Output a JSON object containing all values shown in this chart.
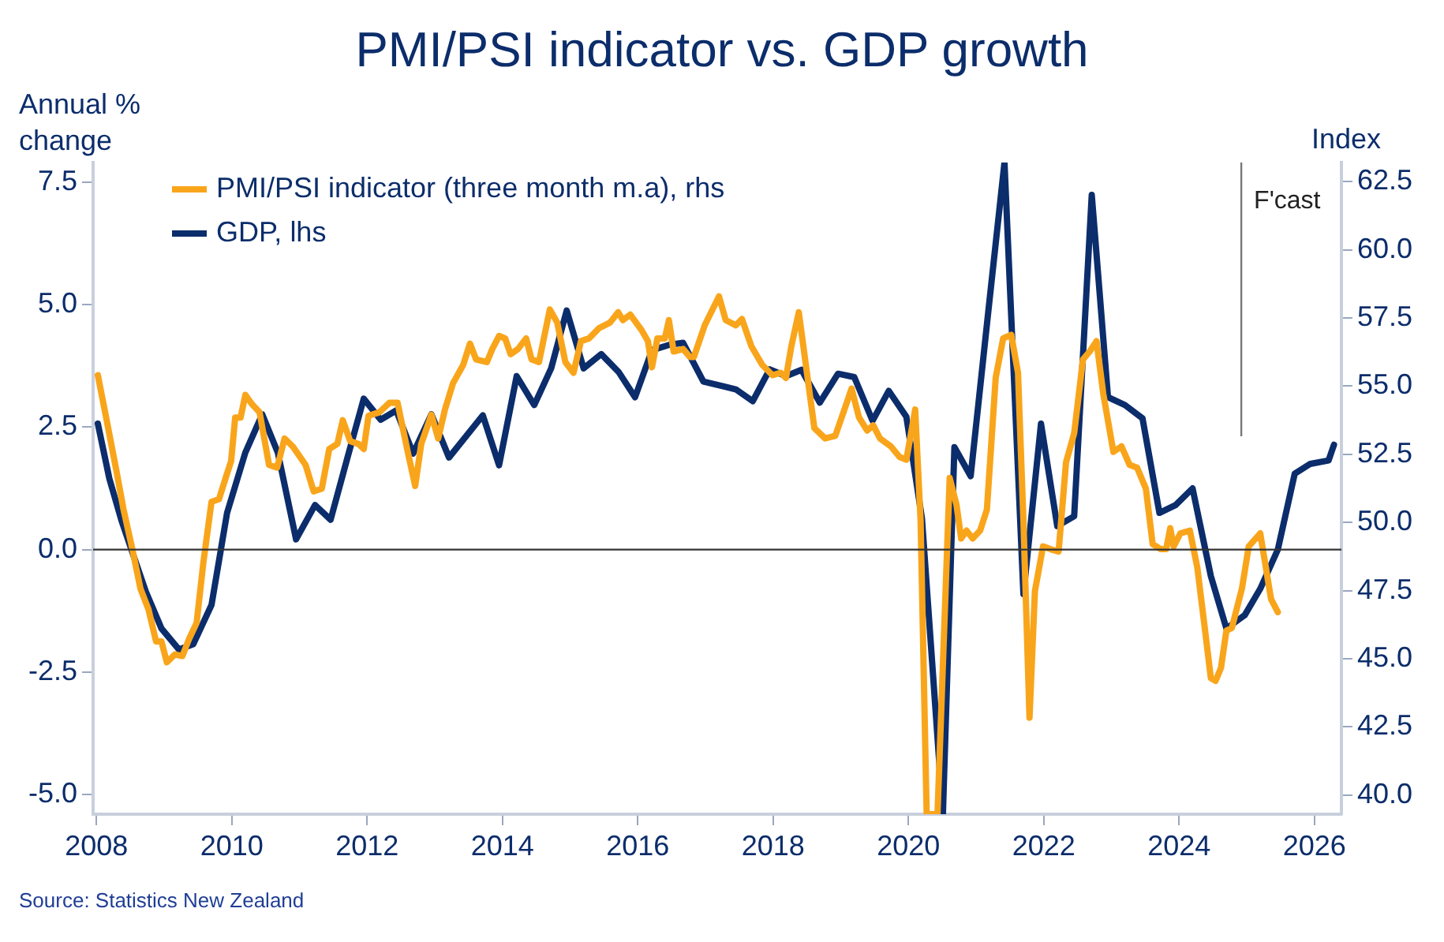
{
  "chart_data": {
    "type": "line",
    "title": "PMI/PSI indicator vs. GDP growth",
    "ylabel": "Annual % change",
    "y2label": "Index",
    "annotations": [
      "Source: Statistics New Zealand"
    ],
    "xlim": [
      2007.95,
      2026.4
    ],
    "xticks": [
      2008,
      2010,
      2012,
      2014,
      2016,
      2018,
      2020,
      2022,
      2024,
      2026
    ],
    "ylim": [
      -5.4,
      7.9
    ],
    "yticks": [
      {
        "value": -5,
        "label": "-5.0"
      },
      {
        "value": -2.5,
        "label": "-2.5"
      },
      {
        "value": 0,
        "label": "0.0"
      },
      {
        "value": 2.5,
        "label": "2.5"
      },
      {
        "value": 5,
        "label": "5.0"
      },
      {
        "value": 7.5,
        "label": "7.5"
      }
    ],
    "y2lim": [
      39.3,
      63.2
    ],
    "y2ticks": [
      {
        "value": 40,
        "label": "40.0"
      },
      {
        "value": 42.5,
        "label": "42.5"
      },
      {
        "value": 45,
        "label": "45.0"
      },
      {
        "value": 47.5,
        "label": "47.5"
      },
      {
        "value": 50,
        "label": "50.0"
      },
      {
        "value": 52.5,
        "label": "52.5"
      },
      {
        "value": 55,
        "label": "55.0"
      },
      {
        "value": 57.5,
        "label": "57.5"
      },
      {
        "value": 60,
        "label": "60.0"
      },
      {
        "value": 62.5,
        "label": "62.5"
      }
    ],
    "grid": false,
    "legend": "top left",
    "marker": "none",
    "line_style": "solid",
    "ref_lines": [
      {
        "axis": "y",
        "value": 0,
        "color": "#333333"
      },
      {
        "axis": "x",
        "value": 2024.92,
        "label": "F'cast",
        "color": "#777777"
      }
    ],
    "series": [
      {
        "name": "PMI/PSI indicator (three month m.a), rhs",
        "color": "#f9a51b",
        "axis": "y2",
        "x": [
          2008.02,
          2008.15,
          2008.3,
          2008.4,
          2008.53,
          2008.65,
          2008.77,
          2008.88,
          2008.96,
          2009.04,
          2009.16,
          2009.27,
          2009.37,
          2009.48,
          2009.58,
          2009.7,
          2009.81,
          2009.92,
          2009.99,
          2010.05,
          2010.13,
          2010.2,
          2010.3,
          2010.41,
          2010.55,
          2010.67,
          2010.78,
          2010.9,
          2011.09,
          2011.21,
          2011.33,
          2011.44,
          2011.56,
          2011.64,
          2011.75,
          2011.87,
          2011.95,
          2012.02,
          2012.18,
          2012.33,
          2012.45,
          2012.6,
          2012.71,
          2012.8,
          2012.95,
          2013.05,
          2013.15,
          2013.27,
          2013.42,
          2013.52,
          2013.61,
          2013.77,
          2013.85,
          2013.95,
          2014.04,
          2014.12,
          2014.23,
          2014.35,
          2014.43,
          2014.54,
          2014.7,
          2014.81,
          2014.93,
          2015.05,
          2015.16,
          2015.28,
          2015.43,
          2015.59,
          2015.71,
          2015.78,
          2015.89,
          2016.06,
          2016.15,
          2016.21,
          2016.29,
          2016.4,
          2016.46,
          2016.53,
          2016.67,
          2016.77,
          2016.83,
          2016.99,
          2017.2,
          2017.3,
          2017.45,
          2017.54,
          2017.68,
          2017.84,
          2017.99,
          2018.11,
          2018.19,
          2018.27,
          2018.38,
          2018.5,
          2018.61,
          2018.77,
          2018.92,
          2019.04,
          2019.16,
          2019.27,
          2019.39,
          2019.48,
          2019.58,
          2019.74,
          2019.87,
          2019.97,
          2020.1,
          2020.18,
          2020.27,
          2020.43,
          2020.61,
          2020.71,
          2020.78,
          2020.86,
          2020.95,
          2021.06,
          2021.16,
          2021.29,
          2021.4,
          2021.52,
          2021.62,
          2021.7,
          2021.79,
          2021.87,
          2021.99,
          2022.1,
          2022.22,
          2022.33,
          2022.45,
          2022.58,
          2022.68,
          2022.78,
          2022.88,
          2023.03,
          2023.15,
          2023.27,
          2023.38,
          2023.51,
          2023.61,
          2023.73,
          2023.81,
          2023.87,
          2023.92,
          2024.02,
          2024.16,
          2024.27,
          2024.39,
          2024.47,
          2024.54,
          2024.62,
          2024.7,
          2024.78,
          2024.93,
          2025.03,
          2025.2,
          2025.36,
          2025.46
        ],
        "values": [
          55.4,
          53.75,
          51.82,
          50.47,
          49.02,
          47.57,
          46.8,
          45.64,
          45.64,
          44.87,
          45.16,
          45.1,
          45.74,
          46.32,
          48.54,
          50.76,
          50.85,
          51.72,
          52.25,
          53.85,
          53.85,
          54.68,
          54.33,
          54.04,
          52.11,
          52.01,
          53.08,
          52.79,
          52.11,
          51.14,
          51.24,
          52.69,
          52.88,
          53.75,
          52.98,
          52.88,
          52.69,
          53.91,
          54.04,
          54.39,
          54.39,
          52.59,
          51.34,
          52.88,
          53.95,
          53.08,
          54.14,
          55.11,
          55.78,
          56.56,
          55.98,
          55.88,
          56.36,
          56.84,
          56.75,
          56.17,
          56.36,
          56.75,
          55.98,
          55.88,
          57.81,
          57.33,
          55.88,
          55.49,
          56.65,
          56.75,
          57.13,
          57.33,
          57.71,
          57.42,
          57.62,
          57.04,
          56.65,
          55.69,
          56.75,
          56.75,
          57.42,
          56.27,
          56.36,
          56.07,
          56.07,
          57.23,
          58.29,
          57.42,
          57.23,
          57.46,
          56.46,
          55.78,
          55.4,
          55.49,
          55.3,
          56.46,
          57.71,
          55.49,
          53.46,
          53.08,
          53.18,
          54.04,
          54.91,
          53.85,
          53.37,
          53.56,
          53.08,
          52.79,
          52.4,
          52.3,
          54.14,
          50.08,
          39.3,
          39.3,
          51.63,
          50.66,
          49.41,
          49.7,
          49.41,
          49.7,
          50.47,
          55.3,
          56.75,
          56.88,
          55.49,
          50.08,
          42.84,
          47.48,
          49.12,
          49.02,
          48.93,
          52.21,
          53.27,
          55.98,
          56.27,
          56.65,
          54.72,
          52.59,
          52.79,
          52.11,
          52.01,
          51.24,
          49.21,
          49.02,
          49.02,
          49.79,
          49.12,
          49.6,
          49.7,
          48.35,
          45.93,
          44.29,
          44.19,
          44.67,
          46.03,
          46.13,
          47.58,
          49.12,
          49.6,
          47.19,
          46.71
        ]
      },
      {
        "name": "GDP, lhs",
        "color": "#0c2d6b",
        "x": [
          2008.02,
          2008.19,
          2008.37,
          2008.73,
          2008.96,
          2009.22,
          2009.43,
          2009.7,
          2009.93,
          2010.2,
          2010.45,
          2010.68,
          2010.95,
          2011.23,
          2011.46,
          2011.71,
          2011.95,
          2012.2,
          2012.43,
          2012.68,
          2012.95,
          2013.21,
          2013.71,
          2013.95,
          2014.21,
          2014.47,
          2014.72,
          2014.95,
          2015.2,
          2015.46,
          2015.72,
          2015.96,
          2016.21,
          2016.47,
          2016.67,
          2016.97,
          2017.3,
          2017.45,
          2017.7,
          2017.95,
          2018.19,
          2018.42,
          2018.69,
          2018.96,
          2019.2,
          2019.47,
          2019.71,
          2019.97,
          2020.2,
          2020.51,
          2020.68,
          2020.92,
          2021.17,
          2021.42,
          2021.7,
          2021.96,
          2022.2,
          2022.45,
          2022.71,
          2022.95,
          2023.2,
          2023.46,
          2023.71,
          2023.95,
          2024.2,
          2024.47,
          2024.7,
          2024.97,
          2025.2,
          2025.46,
          2025.71,
          2025.94,
          2026.21,
          2026.29
        ],
        "values": [
          2.57,
          1.45,
          0.59,
          -0.86,
          -1.61,
          -2.04,
          -1.93,
          -1.13,
          0.75,
          1.98,
          2.76,
          1.98,
          0.21,
          0.91,
          0.61,
          1.88,
          3.08,
          2.65,
          2.84,
          1.96,
          2.76,
          1.88,
          2.74,
          1.72,
          3.54,
          2.95,
          3.7,
          4.88,
          3.7,
          3.99,
          3.62,
          3.11,
          4.07,
          4.18,
          4.22,
          3.43,
          3.32,
          3.27,
          3.03,
          3.68,
          3.54,
          3.67,
          3.0,
          3.59,
          3.52,
          2.63,
          3.24,
          2.71,
          0.64,
          -5.4,
          2.09,
          1.5,
          4.72,
          7.9,
          -0.91,
          2.57,
          0.48,
          0.68,
          7.24,
          3.11,
          2.95,
          2.68,
          0.75,
          0.91,
          1.25,
          -0.54,
          -1.61,
          -1.34,
          -0.8,
          0.0,
          1.55,
          1.75,
          1.82,
          2.14
        ]
      }
    ]
  }
}
